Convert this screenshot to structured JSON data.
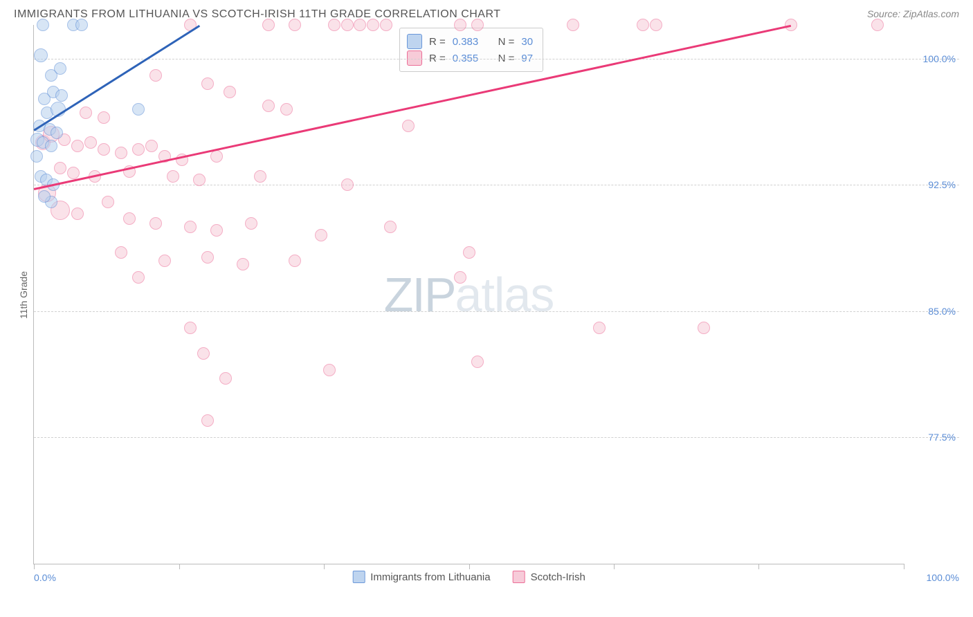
{
  "header": {
    "title": "IMMIGRANTS FROM LITHUANIA VS SCOTCH-IRISH 11TH GRADE CORRELATION CHART",
    "source": "Source: ZipAtlas.com"
  },
  "axes": {
    "y_label": "11th Grade",
    "y_ticks": [
      {
        "value": 100.0,
        "label": "100.0%"
      },
      {
        "value": 92.5,
        "label": "92.5%"
      },
      {
        "value": 85.0,
        "label": "85.0%"
      },
      {
        "value": 77.5,
        "label": "77.5%"
      }
    ],
    "y_min": 70.0,
    "y_max": 102.0,
    "x_ticks_pct": [
      0,
      16.7,
      33.3,
      50,
      66.7,
      83.3,
      100
    ],
    "x_labels": {
      "min": "0.0%",
      "max": "100.0%"
    },
    "x_min": 0.0,
    "x_max": 100.0
  },
  "series": {
    "a": {
      "name": "Immigrants from Lithuania",
      "fill": "#b8d0ee",
      "stroke": "#5b8dd6",
      "fill_opacity": 0.55,
      "R": "0.383",
      "N": "30",
      "trend": {
        "x1": 0,
        "y1": 95.8,
        "x2": 19.0,
        "y2": 102.0,
        "color": "#2e63b8"
      },
      "points": [
        {
          "x": 1.0,
          "y": 102.0,
          "r": 9
        },
        {
          "x": 4.5,
          "y": 102.0,
          "r": 9
        },
        {
          "x": 5.5,
          "y": 102.0,
          "r": 9
        },
        {
          "x": 0.8,
          "y": 100.2,
          "r": 10
        },
        {
          "x": 2.0,
          "y": 99.0,
          "r": 9
        },
        {
          "x": 3.0,
          "y": 99.4,
          "r": 9
        },
        {
          "x": 2.2,
          "y": 98.0,
          "r": 9
        },
        {
          "x": 1.2,
          "y": 97.6,
          "r": 9
        },
        {
          "x": 3.2,
          "y": 97.8,
          "r": 9
        },
        {
          "x": 1.5,
          "y": 96.8,
          "r": 9
        },
        {
          "x": 2.8,
          "y": 97.0,
          "r": 11
        },
        {
          "x": 12.0,
          "y": 97.0,
          "r": 9
        },
        {
          "x": 0.6,
          "y": 96.0,
          "r": 9
        },
        {
          "x": 1.8,
          "y": 95.8,
          "r": 9
        },
        {
          "x": 2.6,
          "y": 95.6,
          "r": 9
        },
        {
          "x": 0.4,
          "y": 95.2,
          "r": 10
        },
        {
          "x": 1.0,
          "y": 95.0,
          "r": 9
        },
        {
          "x": 2.0,
          "y": 94.8,
          "r": 9
        },
        {
          "x": 0.3,
          "y": 94.2,
          "r": 9
        },
        {
          "x": 0.8,
          "y": 93.0,
          "r": 9
        },
        {
          "x": 1.4,
          "y": 92.8,
          "r": 9
        },
        {
          "x": 2.2,
          "y": 92.5,
          "r": 9
        },
        {
          "x": 2.0,
          "y": 91.5,
          "r": 9
        },
        {
          "x": 1.2,
          "y": 91.8,
          "r": 9
        }
      ]
    },
    "b": {
      "name": "Scotch-Irish",
      "fill": "#f7c6d5",
      "stroke": "#ea5e8c",
      "fill_opacity": 0.5,
      "R": "0.355",
      "N": "97",
      "trend": {
        "x1": 0,
        "y1": 92.3,
        "x2": 87.0,
        "y2": 102.0,
        "color": "#ea3a77"
      },
      "points": [
        {
          "x": 18.0,
          "y": 102.0,
          "r": 9
        },
        {
          "x": 27.0,
          "y": 102.0,
          "r": 9
        },
        {
          "x": 30.0,
          "y": 102.0,
          "r": 9
        },
        {
          "x": 34.5,
          "y": 102.0,
          "r": 9
        },
        {
          "x": 36.0,
          "y": 102.0,
          "r": 9
        },
        {
          "x": 37.5,
          "y": 102.0,
          "r": 9
        },
        {
          "x": 39.0,
          "y": 102.0,
          "r": 9
        },
        {
          "x": 40.5,
          "y": 102.0,
          "r": 9
        },
        {
          "x": 49.0,
          "y": 102.0,
          "r": 9
        },
        {
          "x": 51.0,
          "y": 102.0,
          "r": 9
        },
        {
          "x": 62.0,
          "y": 102.0,
          "r": 9
        },
        {
          "x": 70.0,
          "y": 102.0,
          "r": 9
        },
        {
          "x": 71.5,
          "y": 102.0,
          "r": 9
        },
        {
          "x": 87.0,
          "y": 102.0,
          "r": 9
        },
        {
          "x": 97.0,
          "y": 102.0,
          "r": 9
        },
        {
          "x": 14.0,
          "y": 99.0,
          "r": 9
        },
        {
          "x": 20.0,
          "y": 98.5,
          "r": 9
        },
        {
          "x": 22.5,
          "y": 98.0,
          "r": 9
        },
        {
          "x": 6.0,
          "y": 96.8,
          "r": 9
        },
        {
          "x": 8.0,
          "y": 96.5,
          "r": 9
        },
        {
          "x": 27.0,
          "y": 97.2,
          "r": 9
        },
        {
          "x": 29.0,
          "y": 97.0,
          "r": 9
        },
        {
          "x": 43.0,
          "y": 96.0,
          "r": 9
        },
        {
          "x": 1.0,
          "y": 95.0,
          "r": 11
        },
        {
          "x": 2.0,
          "y": 95.5,
          "r": 12
        },
        {
          "x": 3.5,
          "y": 95.2,
          "r": 9
        },
        {
          "x": 5.0,
          "y": 94.8,
          "r": 9
        },
        {
          "x": 6.5,
          "y": 95.0,
          "r": 9
        },
        {
          "x": 8.0,
          "y": 94.6,
          "r": 9
        },
        {
          "x": 10.0,
          "y": 94.4,
          "r": 9
        },
        {
          "x": 12.0,
          "y": 94.6,
          "r": 9
        },
        {
          "x": 13.5,
          "y": 94.8,
          "r": 9
        },
        {
          "x": 15.0,
          "y": 94.2,
          "r": 9
        },
        {
          "x": 17.0,
          "y": 94.0,
          "r": 9
        },
        {
          "x": 21.0,
          "y": 94.2,
          "r": 9
        },
        {
          "x": 3.0,
          "y": 93.5,
          "r": 9
        },
        {
          "x": 4.5,
          "y": 93.2,
          "r": 9
        },
        {
          "x": 7.0,
          "y": 93.0,
          "r": 9
        },
        {
          "x": 11.0,
          "y": 93.3,
          "r": 9
        },
        {
          "x": 16.0,
          "y": 93.0,
          "r": 9
        },
        {
          "x": 19.0,
          "y": 92.8,
          "r": 9
        },
        {
          "x": 26.0,
          "y": 93.0,
          "r": 9
        },
        {
          "x": 36.0,
          "y": 92.5,
          "r": 9
        },
        {
          "x": 1.5,
          "y": 92.0,
          "r": 13
        },
        {
          "x": 3.0,
          "y": 91.0,
          "r": 14
        },
        {
          "x": 5.0,
          "y": 90.8,
          "r": 9
        },
        {
          "x": 8.5,
          "y": 91.5,
          "r": 9
        },
        {
          "x": 11.0,
          "y": 90.5,
          "r": 9
        },
        {
          "x": 14.0,
          "y": 90.2,
          "r": 9
        },
        {
          "x": 18.0,
          "y": 90.0,
          "r": 9
        },
        {
          "x": 21.0,
          "y": 89.8,
          "r": 9
        },
        {
          "x": 25.0,
          "y": 90.2,
          "r": 9
        },
        {
          "x": 33.0,
          "y": 89.5,
          "r": 9
        },
        {
          "x": 41.0,
          "y": 90.0,
          "r": 9
        },
        {
          "x": 10.0,
          "y": 88.5,
          "r": 9
        },
        {
          "x": 15.0,
          "y": 88.0,
          "r": 9
        },
        {
          "x": 20.0,
          "y": 88.2,
          "r": 9
        },
        {
          "x": 24.0,
          "y": 87.8,
          "r": 9
        },
        {
          "x": 30.0,
          "y": 88.0,
          "r": 9
        },
        {
          "x": 50.0,
          "y": 88.5,
          "r": 9
        },
        {
          "x": 12.0,
          "y": 87.0,
          "r": 9
        },
        {
          "x": 49.0,
          "y": 87.0,
          "r": 9
        },
        {
          "x": 18.0,
          "y": 84.0,
          "r": 9
        },
        {
          "x": 65.0,
          "y": 84.0,
          "r": 9
        },
        {
          "x": 77.0,
          "y": 84.0,
          "r": 9
        },
        {
          "x": 19.5,
          "y": 82.5,
          "r": 9
        },
        {
          "x": 34.0,
          "y": 81.5,
          "r": 9
        },
        {
          "x": 51.0,
          "y": 82.0,
          "r": 9
        },
        {
          "x": 22.0,
          "y": 81.0,
          "r": 9
        },
        {
          "x": 20.0,
          "y": 78.5,
          "r": 9
        }
      ]
    }
  },
  "legend": {
    "r_label": "R =",
    "n_label": "N ="
  },
  "watermark": {
    "part1": "ZIP",
    "part2": "atlas"
  }
}
